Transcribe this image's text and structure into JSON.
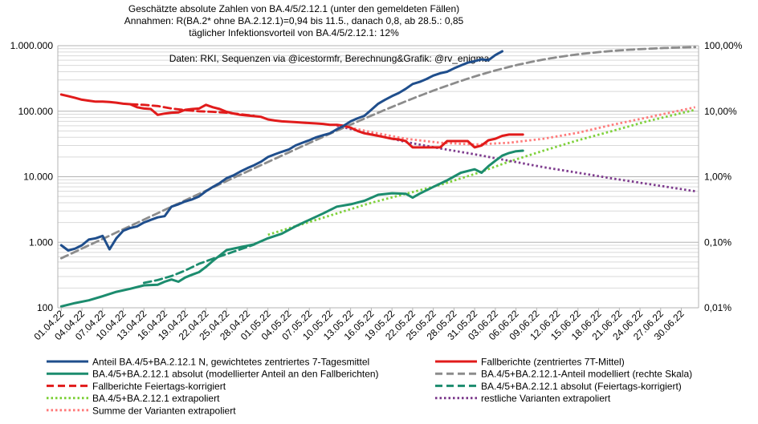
{
  "chart_data": {
    "type": "line",
    "title_lines": [
      "Geschätzte absolute Zahlen von BA.4/5/2.12.1 (unter den gemeldeten Fällen)",
      "Annahmen: R(BA.2* ohne BA.2.12.1)=0,94 bis 11.5., danach 0,8, ab 28.5.: 0,85",
      "täglicher Infektionsvorteil von BA.4/5/2.12.1: 12%"
    ],
    "source_note": "Daten: RKI, Sequenzen via @icestormfr, Berechnung&Grafik: @rv_enigma",
    "y_left": {
      "scale": "log",
      "min": 100,
      "max": 1000000,
      "tick_values": [
        100,
        1000,
        10000,
        100000,
        1000000
      ],
      "tick_labels": [
        "100",
        "1.000",
        "10.000",
        "100.000",
        "1.000.000"
      ]
    },
    "y_right": {
      "scale": "log",
      "min": 0.01,
      "max": 100,
      "unit": "%",
      "tick_values": [
        0.01,
        0.1,
        1,
        10,
        100
      ],
      "tick_labels": [
        "0,01%",
        "0,10%",
        "1,00%",
        "10,00%",
        "100,00%"
      ]
    },
    "x_axis": {
      "start": "01.04.22",
      "end": "02.07.22",
      "day_count": 93,
      "tick_day_indices": [
        0,
        3,
        6,
        9,
        12,
        15,
        18,
        21,
        24,
        27,
        30,
        33,
        36,
        39,
        42,
        45,
        48,
        51,
        54,
        57,
        60,
        63,
        66,
        69,
        72,
        75,
        78,
        81,
        84,
        87,
        90
      ],
      "tick_labels": [
        "01.04.22",
        "04.04.22",
        "07.04.22",
        "10.04.22",
        "13.04.22",
        "16.04.22",
        "19.04.22",
        "22.04.22",
        "25.04.22",
        "28.04.22",
        "01.05.22",
        "04.05.22",
        "07.05.22",
        "10.05.22",
        "13.05.22",
        "16.05.22",
        "19.05.22",
        "22.05.22",
        "25.05.22",
        "28.05.22",
        "31.05.22",
        "03.06.22",
        "06.06.22",
        "09.06.22",
        "12.06.22",
        "15.06.22",
        "18.06.22",
        "21.06.22",
        "24.06.22",
        "27.06.22",
        "30.06.22"
      ]
    },
    "series": [
      {
        "name": "Anteil BA.4/5+BA.2.12.1 N, gewichtetes zentriertes 7-Tagesmittel",
        "axis": "right",
        "color": "#1f4e8c",
        "style": "solid",
        "x": [
          0,
          1,
          2,
          3,
          4,
          5,
          6,
          7,
          8,
          9,
          10,
          11,
          12,
          13,
          14,
          15,
          16,
          17,
          18,
          19,
          20,
          21,
          22,
          23,
          24,
          25,
          26,
          27,
          28,
          29,
          30,
          31,
          32,
          33,
          34,
          35,
          36,
          37,
          38,
          39,
          40,
          41,
          42,
          43,
          44,
          45,
          46,
          47,
          48,
          49,
          50,
          51,
          52,
          53,
          54,
          55,
          56,
          57,
          58,
          59,
          60,
          61,
          62,
          63,
          64
        ],
        "values": [
          0.09,
          0.075,
          0.08,
          0.09,
          0.11,
          0.115,
          0.125,
          0.078,
          0.115,
          0.15,
          0.165,
          0.175,
          0.2,
          0.22,
          0.24,
          0.25,
          0.35,
          0.38,
          0.42,
          0.45,
          0.5,
          0.6,
          0.7,
          0.8,
          0.95,
          1.05,
          1.2,
          1.35,
          1.5,
          1.7,
          2.0,
          2.2,
          2.4,
          2.6,
          3.0,
          3.3,
          3.6,
          4.0,
          4.3,
          4.6,
          5.3,
          6.0,
          7.0,
          7.8,
          8.5,
          10.5,
          13.0,
          15.0,
          17.0,
          19.0,
          22.0,
          26.0,
          28.0,
          31.0,
          35.0,
          38.0,
          40.0,
          45.0,
          50.0,
          55.0,
          58.0,
          62.0,
          60.0,
          72.0,
          82.0
        ]
      },
      {
        "name": "Fallberichte (zentriertes 7T-Mittel)",
        "axis": "left",
        "color": "#e11b1b",
        "style": "solid",
        "x": [
          0,
          1,
          2,
          3,
          4,
          5,
          6,
          7,
          8,
          9,
          10,
          11,
          12,
          13,
          14,
          15,
          16,
          17,
          18,
          19,
          20,
          21,
          22,
          23,
          24,
          25,
          26,
          27,
          28,
          29,
          30,
          31,
          32,
          33,
          34,
          35,
          36,
          37,
          38,
          39,
          40,
          41,
          42,
          43,
          44,
          45,
          46,
          47,
          48,
          49,
          50,
          51,
          52,
          53,
          54,
          55,
          56,
          57,
          58,
          59,
          60,
          61,
          62,
          63,
          64,
          65,
          66,
          67
        ],
        "values": [
          180000,
          170000,
          160000,
          150000,
          145000,
          140000,
          140000,
          138000,
          135000,
          130000,
          128000,
          115000,
          110000,
          108000,
          88000,
          92000,
          95000,
          96000,
          105000,
          108000,
          110000,
          125000,
          115000,
          108000,
          98000,
          92000,
          88000,
          86000,
          84000,
          82000,
          75000,
          72000,
          70000,
          69000,
          68000,
          67000,
          66000,
          65000,
          64000,
          62000,
          62000,
          60000,
          56000,
          50000,
          46000,
          44000,
          42000,
          40000,
          38000,
          37000,
          35000,
          28000,
          28000,
          28000,
          28000,
          28000,
          35000,
          35000,
          35000,
          35000,
          28000,
          30000,
          36000,
          38000,
          42000,
          44000,
          44000,
          44000
        ]
      },
      {
        "name": "BA.4/5+BA.2.12.1 absolut (modellierter Anteil an den Fallberichten)",
        "axis": "left",
        "color": "#1c8c6e",
        "style": "solid",
        "x": [
          0,
          2,
          4,
          6,
          8,
          10,
          12,
          14,
          15,
          16,
          17,
          18,
          19,
          20,
          21,
          22,
          24,
          26,
          28,
          30,
          32,
          34,
          36,
          38,
          40,
          42,
          44,
          46,
          48,
          50,
          51,
          52,
          54,
          56,
          58,
          60,
          61,
          62,
          63,
          64,
          65,
          66,
          67
        ],
        "values": [
          105,
          118,
          130,
          150,
          175,
          195,
          220,
          225,
          250,
          270,
          250,
          290,
          320,
          350,
          420,
          520,
          760,
          840,
          930,
          1150,
          1350,
          1750,
          2200,
          2750,
          3500,
          3800,
          4300,
          5300,
          5600,
          5500,
          4800,
          5500,
          7000,
          8800,
          11500,
          13000,
          11500,
          14500,
          17500,
          21000,
          23000,
          24500,
          25000
        ]
      },
      {
        "name": "BA.4/5+BA.2.12.1-Anteil modelliert (rechte Skala)",
        "axis": "right",
        "color": "#8c8c8c",
        "style": "dashed",
        "model": "logistic",
        "p0_percent": 0.057,
        "daily_advantage": 1.12,
        "x_range": [
          0,
          92
        ]
      },
      {
        "name": "Fallberichte Feiertags-korrigiert",
        "axis": "left",
        "color": "#e11b1b",
        "style": "dashed",
        "x": [
          10,
          12,
          14,
          16,
          18,
          20,
          22,
          24,
          26,
          28
        ],
        "values": [
          128000,
          125000,
          120000,
          110000,
          104000,
          100000,
          98000,
          95000,
          90000,
          85000
        ]
      },
      {
        "name": "BA.4/5+BA.2.12.1 absolut (Feiertags-korrigiert)",
        "axis": "left",
        "color": "#1c8c6e",
        "style": "dashed",
        "x": [
          12,
          14,
          16,
          18,
          20,
          22,
          24,
          26,
          28
        ],
        "values": [
          240,
          265,
          305,
          370,
          470,
          560,
          660,
          780,
          920
        ]
      },
      {
        "name": "BA.4/5+BA.2.12.1 extrapoliert",
        "axis": "left",
        "color": "#7fd13b",
        "style": "dotted",
        "x": [
          30,
          45,
          55,
          60,
          65,
          70,
          75,
          80,
          85,
          92
        ],
        "values": [
          1300,
          4000,
          7500,
          11000,
          17000,
          25000,
          36000,
          50000,
          70000,
          105000
        ]
      },
      {
        "name": "restliche Varianten extrapoliert",
        "axis": "left",
        "color": "#7e3c8e",
        "style": "dotted",
        "x": [
          40,
          45,
          50,
          55,
          60,
          65,
          70,
          75,
          80,
          85,
          92
        ],
        "values": [
          60000,
          45000,
          34000,
          27000,
          22000,
          17500,
          14000,
          11500,
          9400,
          7800,
          6000
        ]
      },
      {
        "name": "Summe der Varianten extrapoliert",
        "axis": "left",
        "color": "#ff7b7b",
        "style": "dotted",
        "x": [
          40,
          45,
          50,
          55,
          60,
          65,
          70,
          75,
          80,
          85,
          92
        ],
        "values": [
          62000,
          48000,
          38000,
          33000,
          31000,
          33000,
          38000,
          47000,
          62000,
          80000,
          115000
        ]
      }
    ],
    "legend": {
      "placement": "bottom",
      "columns": 2
    }
  }
}
